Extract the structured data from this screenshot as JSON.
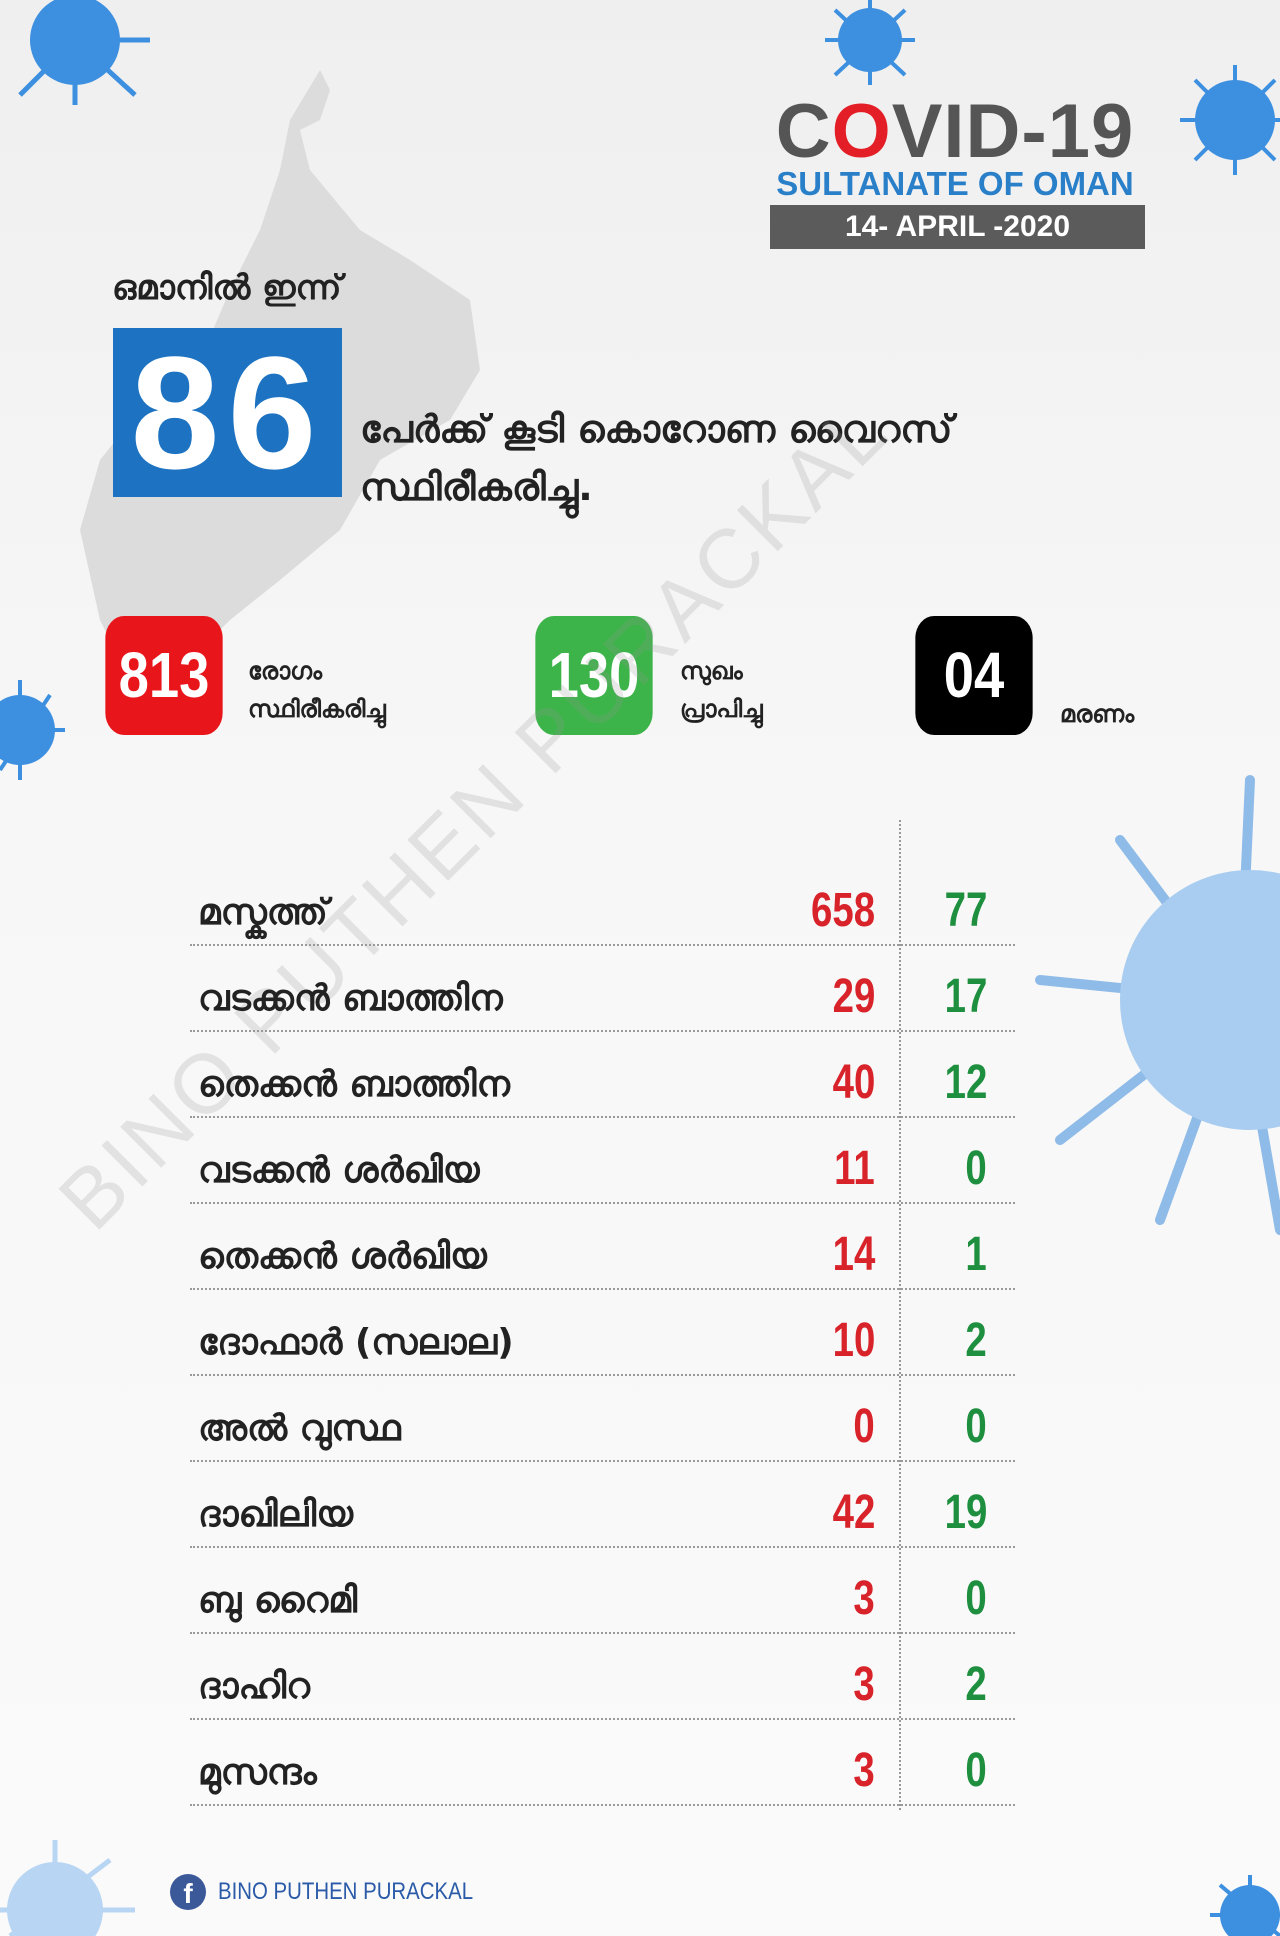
{
  "header": {
    "title_pre": "C",
    "title_o": "O",
    "title_post": "VID-19",
    "subtitle": "SULTANATE OF OMAN",
    "date": "14- APRIL -2020"
  },
  "headline": {
    "today": "ഒമാനിൽ ഇന്ന്",
    "new_cases": "86",
    "line1": "പേർക്ക് കൂടി കൊറോണ വൈറസ്",
    "line2": "സ്ഥിരീകരിച്ചു."
  },
  "stats": [
    {
      "value": "813",
      "label1": "രോഗം",
      "label2": "സ്ഥിരീകരിച്ചു",
      "color": "#e8151b"
    },
    {
      "value": "130",
      "label1": "സുഖം",
      "label2": "പ്രാപിച്ചു",
      "color": "#3cb44a"
    },
    {
      "value": "04",
      "label1": "",
      "label2": "മരണം",
      "color": "#000000"
    }
  ],
  "regions": [
    {
      "name": "മസ്കത്ത്",
      "confirmed": "658",
      "recovered": "77"
    },
    {
      "name": "വടക്കൻ ബാത്തിന",
      "confirmed": "29",
      "recovered": "17"
    },
    {
      "name": "തെക്കൻ ബാത്തിന",
      "confirmed": "40",
      "recovered": "12"
    },
    {
      "name": "വടക്കൻ ശർഖിയ",
      "confirmed": "11",
      "recovered": "0"
    },
    {
      "name": "തെക്കൻ ശർഖിയ",
      "confirmed": "14",
      "recovered": "1"
    },
    {
      "name": "ദോഫാർ (സലാല)",
      "confirmed": "10",
      "recovered": "2"
    },
    {
      "name": "അൽ വുസ്ഥ",
      "confirmed": "0",
      "recovered": "0"
    },
    {
      "name": "ദാഖിലിയ",
      "confirmed": "42",
      "recovered": "19"
    },
    {
      "name": "ബു റൈമി",
      "confirmed": "3",
      "recovered": "0"
    },
    {
      "name": "ദാഹിറ",
      "confirmed": "3",
      "recovered": "2"
    },
    {
      "name": "മുസന്ദം",
      "confirmed": "3",
      "recovered": "0"
    }
  ],
  "watermark": "BINO PUTHEN PURACKAL",
  "footer": {
    "icon": "facebook-icon",
    "credit": "BINO PUTHEN PURACKAL"
  },
  "colors": {
    "confirmed": "#d8232a",
    "recovered": "#1e8f3e",
    "accent": "#1d73c1"
  }
}
